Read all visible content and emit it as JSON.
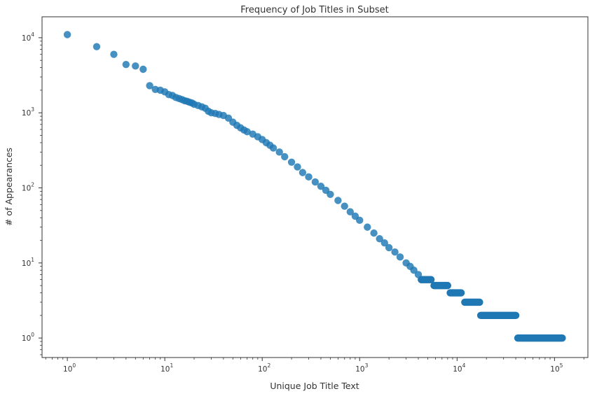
{
  "chart_data": {
    "type": "scatter",
    "title": "Frequency of Job Titles in Subset",
    "xlabel": "Unique Job Title Text",
    "ylabel": "# of Appearances",
    "xscale": "log",
    "yscale": "log",
    "xlim": [
      0.55,
      220000
    ],
    "ylim": [
      0.55,
      19000
    ],
    "grid": false,
    "legend": "none",
    "marker_color": "#1f77b4",
    "x_ticks": [
      {
        "base": "10",
        "exp": "0",
        "value": 1
      },
      {
        "base": "10",
        "exp": "1",
        "value": 10
      },
      {
        "base": "10",
        "exp": "2",
        "value": 100
      },
      {
        "base": "10",
        "exp": "3",
        "value": 1000
      },
      {
        "base": "10",
        "exp": "4",
        "value": 10000
      },
      {
        "base": "10",
        "exp": "5",
        "value": 100000
      }
    ],
    "y_ticks": [
      {
        "base": "10",
        "exp": "0",
        "value": 1
      },
      {
        "base": "10",
        "exp": "1",
        "value": 10
      },
      {
        "base": "10",
        "exp": "2",
        "value": 100
      },
      {
        "base": "10",
        "exp": "3",
        "value": 1000
      },
      {
        "base": "10",
        "exp": "4",
        "value": 10000
      }
    ],
    "series": [
      {
        "x": [
          1,
          2,
          3,
          4,
          5,
          6,
          7,
          8,
          9,
          10,
          11,
          12,
          13,
          14,
          15,
          16,
          17,
          18,
          19,
          20,
          22,
          24,
          26,
          28,
          30,
          33,
          36,
          40,
          45,
          50,
          55,
          60,
          65,
          70,
          80,
          90,
          100,
          110,
          120,
          130,
          150,
          170,
          200,
          230,
          260,
          300,
          350,
          400,
          450,
          500,
          600,
          700,
          800,
          900,
          1000,
          1200,
          1400,
          1600,
          1800,
          2000,
          2300,
          2600,
          3000,
          3300,
          3600,
          4000,
          4300
        ],
        "y": [
          11000,
          7600,
          6000,
          4400,
          4200,
          3800,
          2300,
          2050,
          2000,
          1900,
          1750,
          1700,
          1600,
          1550,
          1500,
          1450,
          1420,
          1380,
          1350,
          1300,
          1250,
          1200,
          1150,
          1050,
          1000,
          980,
          950,
          920,
          850,
          750,
          680,
          630,
          590,
          560,
          520,
          480,
          440,
          400,
          370,
          340,
          300,
          260,
          220,
          190,
          160,
          140,
          120,
          105,
          93,
          82,
          68,
          57,
          48,
          42,
          37,
          30,
          25,
          21,
          18.5,
          16,
          14,
          12,
          10,
          9,
          8,
          7,
          6
        ]
      },
      {
        "steps": [
          {
            "y": 6,
            "x_from": 4300,
            "x_to": 5400
          },
          {
            "y": 5,
            "x_from": 5800,
            "x_to": 8000
          },
          {
            "y": 4,
            "x_from": 8500,
            "x_to": 11000
          },
          {
            "y": 3,
            "x_from": 12000,
            "x_to": 17000
          },
          {
            "y": 2,
            "x_from": 17500,
            "x_to": 40000
          },
          {
            "y": 1,
            "x_from": 42000,
            "x_to": 120000
          }
        ]
      }
    ]
  }
}
